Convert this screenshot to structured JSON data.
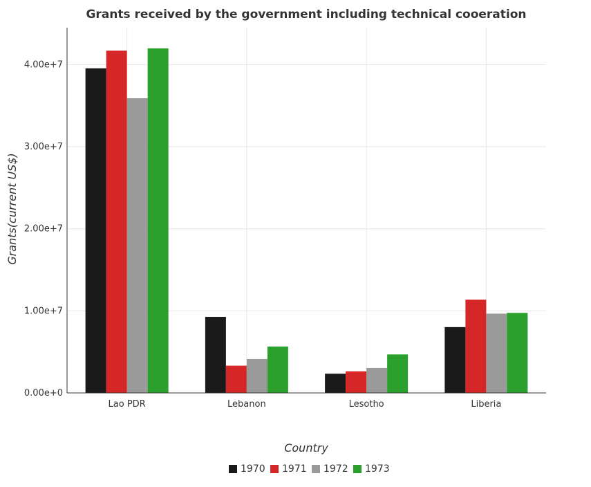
{
  "chart_data": {
    "type": "bar",
    "title": "Grants received by the government including technical cooeration",
    "xlabel": "Country",
    "ylabel": "Grants(current US$)",
    "categories": [
      "Lao PDR",
      "Lebanon",
      "Lesotho",
      "Liberia"
    ],
    "series": [
      {
        "name": "1970",
        "color": "#1a1a1a",
        "values": [
          39550000,
          9270000,
          2340000,
          8020000
        ]
      },
      {
        "name": "1971",
        "color": "#d62728",
        "values": [
          41700000,
          3320000,
          2630000,
          11360000
        ]
      },
      {
        "name": "1972",
        "color": "#9a9a9a",
        "values": [
          35900000,
          4130000,
          3040000,
          9660000
        ]
      },
      {
        "name": "1973",
        "color": "#2ca02c",
        "values": [
          41980000,
          5650000,
          4690000,
          9750000
        ]
      }
    ],
    "yticks": [
      {
        "value": 0,
        "label": "0.00e+0"
      },
      {
        "value": 10000000,
        "label": "1.00e+7"
      },
      {
        "value": 20000000,
        "label": "2.00e+7"
      },
      {
        "value": 30000000,
        "label": "3.00e+7"
      },
      {
        "value": 40000000,
        "label": "4.00e+7"
      }
    ],
    "ylim": [
      0,
      44500000
    ],
    "grid": true,
    "legend_position": "bottom-center"
  }
}
